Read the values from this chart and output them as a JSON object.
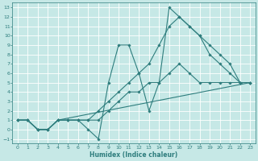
{
  "xlabel": "Humidex (Indice chaleur)",
  "background_color": "#c6e8e6",
  "grid_color": "#ffffff",
  "line_color": "#2e7d7d",
  "xlim": [
    -0.5,
    23.5
  ],
  "ylim": [
    -1.5,
    13.5
  ],
  "xticks": [
    0,
    1,
    2,
    3,
    4,
    5,
    6,
    7,
    8,
    9,
    10,
    11,
    12,
    13,
    14,
    15,
    16,
    17,
    18,
    19,
    20,
    21,
    22,
    23
  ],
  "yticks": [
    -1,
    0,
    1,
    2,
    3,
    4,
    5,
    6,
    7,
    8,
    9,
    10,
    11,
    12,
    13
  ],
  "line1_x": [
    0,
    1,
    2,
    3,
    4,
    23
  ],
  "line1_y": [
    1,
    1,
    0,
    0,
    1,
    5
  ],
  "line2_x": [
    0,
    1,
    2,
    3,
    4,
    5,
    6,
    7,
    8,
    9,
    10,
    11,
    12,
    13,
    14,
    15,
    16,
    17,
    18,
    19,
    20,
    21,
    22,
    23
  ],
  "line2_y": [
    1,
    1,
    0,
    0,
    1,
    1,
    1,
    1,
    1,
    2,
    3,
    4,
    4,
    5,
    5,
    6,
    7,
    6,
    5,
    5,
    5,
    5,
    5,
    5
  ],
  "line3_x": [
    0,
    1,
    2,
    3,
    4,
    5,
    6,
    7,
    8,
    9,
    10,
    11,
    12,
    13,
    14,
    15,
    16,
    17,
    18,
    19,
    20,
    21,
    22,
    23
  ],
  "line3_y": [
    1,
    1,
    0,
    0,
    1,
    1,
    1,
    0,
    -1,
    5,
    9,
    9,
    6,
    2,
    5,
    13,
    12,
    11,
    10,
    8,
    7,
    6,
    5,
    5
  ],
  "line4_x": [
    0,
    1,
    2,
    3,
    4,
    5,
    6,
    7,
    8,
    9,
    10,
    11,
    12,
    13,
    14,
    15,
    16,
    17,
    18,
    19,
    20,
    21,
    22,
    23
  ],
  "line4_y": [
    1,
    1,
    0,
    0,
    1,
    1,
    1,
    1,
    2,
    3,
    4,
    5,
    6,
    7,
    9,
    11,
    12,
    11,
    10,
    9,
    8,
    7,
    5,
    5
  ]
}
